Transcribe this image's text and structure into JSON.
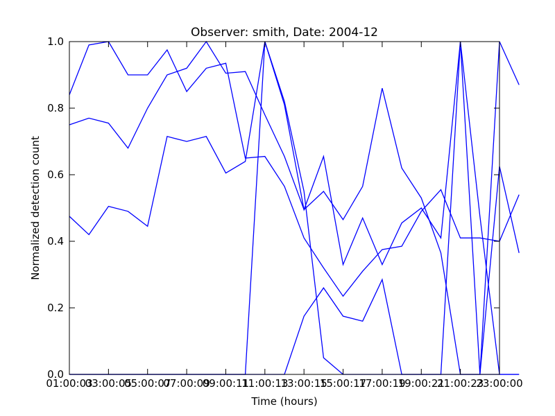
{
  "chart_data": {
    "type": "line",
    "title": "Observer: smith, Date: 2004-12",
    "xlabel": "Time (hours)",
    "ylabel": "Normalized detection count",
    "x": [
      "01:00",
      "02:00",
      "03:00",
      "04:00",
      "05:00",
      "06:00",
      "07:00",
      "08:00",
      "09:00",
      "10:00",
      "11:00",
      "12:00",
      "13:00",
      "14:00",
      "15:00",
      "16:00",
      "17:00",
      "18:00",
      "19:00",
      "20:00",
      "21:00",
      "22:00",
      "23:00",
      "24:00"
    ],
    "x_tick_labels": [
      "01:00:03",
      "03:00:05",
      "05:00:07",
      "07:00:09",
      "09:00:11",
      "11:00:13",
      "13:00:15",
      "15:00:17",
      "17:00:19",
      "19:00:21",
      "21:00:23",
      "23:00:00"
    ],
    "x_tick_positions": [
      "01:00",
      "03:00",
      "05:00",
      "07:00",
      "09:00",
      "11:00",
      "13:00",
      "15:00",
      "17:00",
      "19:00",
      "21:00",
      "23:00"
    ],
    "xlim": [
      "01:00",
      "23:00"
    ],
    "ylim": [
      0,
      1
    ],
    "y_ticks": [
      "0.0",
      "0.2",
      "0.4",
      "0.6",
      "0.8",
      "1.0"
    ],
    "series_color": "#0000ff",
    "series": [
      {
        "values": [
          0.84,
          0.99,
          1.0,
          0.9,
          0.9,
          0.975,
          0.85,
          0.92,
          0.935,
          0.65,
          0.655,
          0.565,
          0.41,
          0.32,
          0.235,
          0.31,
          0.375,
          0.385,
          0.49,
          0.555,
          0.41,
          0.41,
          0.4,
          0.54
        ]
      },
      {
        "values": [
          0.75,
          0.77,
          0.755,
          0.68,
          0.8,
          0.9,
          0.92,
          1.0,
          0.905,
          0.91,
          0.78,
          0.655,
          0.495,
          0.55,
          0.465,
          0.565,
          0.86,
          0.62,
          0.53,
          0.365,
          0.0,
          0.0,
          0.0,
          0.0
        ]
      },
      {
        "values": [
          0.475,
          0.42,
          0.505,
          0.49,
          0.445,
          0.715,
          0.7,
          0.715,
          0.605,
          0.64,
          1.0,
          0.81,
          0.495,
          0.655,
          0.33,
          0.47,
          0.33,
          0.455,
          0.5,
          0.41,
          1.0,
          0.475,
          0.0,
          0.0
        ]
      },
      {
        "values": [
          0.0,
          0.0,
          0.0,
          0.0,
          0.0,
          0.0,
          0.0,
          0.0,
          0.0,
          0.0,
          1.0,
          0.82,
          0.55,
          0.05,
          0.0,
          0.0,
          0.0,
          0.0,
          0.0,
          0.0,
          0.0,
          0.0,
          0.625,
          0.365
        ]
      },
      {
        "values": [
          0.0,
          0.0,
          0.0,
          0.0,
          0.0,
          0.0,
          0.0,
          0.0,
          0.0,
          0.0,
          0.0,
          0.0,
          0.175,
          0.26,
          0.175,
          0.16,
          0.285,
          0.0,
          0.0,
          0.0,
          1.0,
          0.0,
          1.0,
          0.87
        ]
      }
    ]
  }
}
